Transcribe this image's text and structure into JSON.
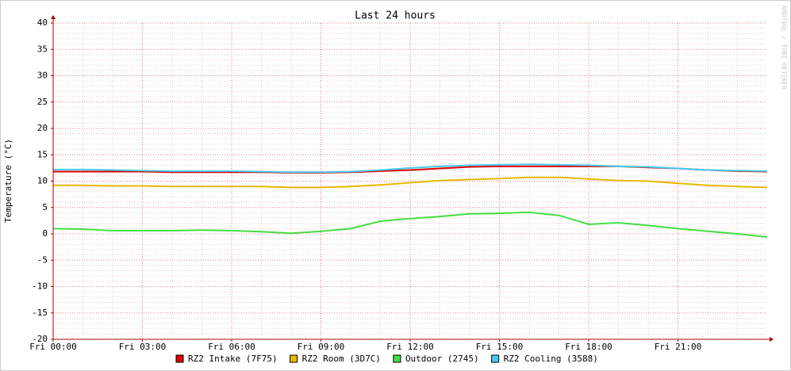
{
  "chart_data": {
    "type": "line",
    "title": "Last 24 hours",
    "ylabel": "Temperature (°C)",
    "watermark": "RRDTOOL / TOBI OETIKER",
    "x": [
      0,
      1,
      2,
      3,
      4,
      5,
      6,
      7,
      8,
      9,
      10,
      11,
      12,
      13,
      14,
      15,
      16,
      17,
      18,
      19,
      20,
      21,
      22,
      23,
      24
    ],
    "xlim": [
      0,
      24
    ],
    "xticks": [
      {
        "value": 0,
        "label": "Fri 00:00"
      },
      {
        "value": 3,
        "label": "Fri 03:00"
      },
      {
        "value": 6,
        "label": "Fri 06:00"
      },
      {
        "value": 9,
        "label": "Fri 09:00"
      },
      {
        "value": 12,
        "label": "Fri 12:00"
      },
      {
        "value": 15,
        "label": "Fri 15:00"
      },
      {
        "value": 18,
        "label": "Fri 18:00"
      },
      {
        "value": 21,
        "label": "Fri 21:00"
      }
    ],
    "xminorticks": [
      1,
      2,
      4,
      5,
      7,
      8,
      10,
      11,
      13,
      14,
      16,
      17,
      19,
      20,
      22,
      23
    ],
    "ylim": [
      -20,
      40
    ],
    "yticks": [
      -20,
      -15,
      -10,
      -5,
      0,
      5,
      10,
      15,
      20,
      25,
      30,
      35,
      40
    ],
    "yminorticks": [
      -19,
      -18,
      -17,
      -16,
      -14,
      -13,
      -12,
      -11,
      -9,
      -8,
      -7,
      -6,
      -4,
      -3,
      -2,
      -1,
      1,
      2,
      3,
      4,
      6,
      7,
      8,
      9,
      11,
      12,
      13,
      14,
      16,
      17,
      18,
      19,
      21,
      22,
      23,
      24,
      26,
      27,
      28,
      29,
      31,
      32,
      33,
      34,
      36,
      37,
      38,
      39
    ],
    "grid": true,
    "series": [
      {
        "name": "RZ2 Intake (7F75)",
        "color": "#e00000",
        "values": [
          11.8,
          11.8,
          11.8,
          11.8,
          11.7,
          11.7,
          11.7,
          11.7,
          11.6,
          11.6,
          11.7,
          11.9,
          12.1,
          12.4,
          12.7,
          12.8,
          12.8,
          12.8,
          12.8,
          12.8,
          12.6,
          12.4,
          12.1,
          11.9,
          11.8
        ]
      },
      {
        "name": "RZ2 Room (3D7C)",
        "color": "#e8b800",
        "values": [
          9.2,
          9.2,
          9.1,
          9.1,
          9.0,
          9.0,
          9.0,
          9.0,
          8.8,
          8.8,
          9.0,
          9.3,
          9.7,
          10.1,
          10.3,
          10.5,
          10.7,
          10.7,
          10.4,
          10.1,
          10.0,
          9.6,
          9.2,
          9.0,
          8.8
        ]
      },
      {
        "name": "Outdoor (2745)",
        "color": "#44dd44",
        "values": [
          1.0,
          0.9,
          0.6,
          0.6,
          0.6,
          0.7,
          0.6,
          0.4,
          0.1,
          0.5,
          1.0,
          2.4,
          2.9,
          3.3,
          3.8,
          3.9,
          4.1,
          3.5,
          1.8,
          2.1,
          1.6,
          1.0,
          0.5,
          0.0,
          -0.6
        ]
      },
      {
        "name": "RZ2 Cooling (3588)",
        "color": "#44ccee",
        "values": [
          12.2,
          12.2,
          12.1,
          12.0,
          11.9,
          11.9,
          11.9,
          11.8,
          11.7,
          11.7,
          11.8,
          12.1,
          12.5,
          12.8,
          13.0,
          13.1,
          13.2,
          13.1,
          13.0,
          12.8,
          12.7,
          12.4,
          12.1,
          12.0,
          11.9
        ]
      }
    ]
  }
}
